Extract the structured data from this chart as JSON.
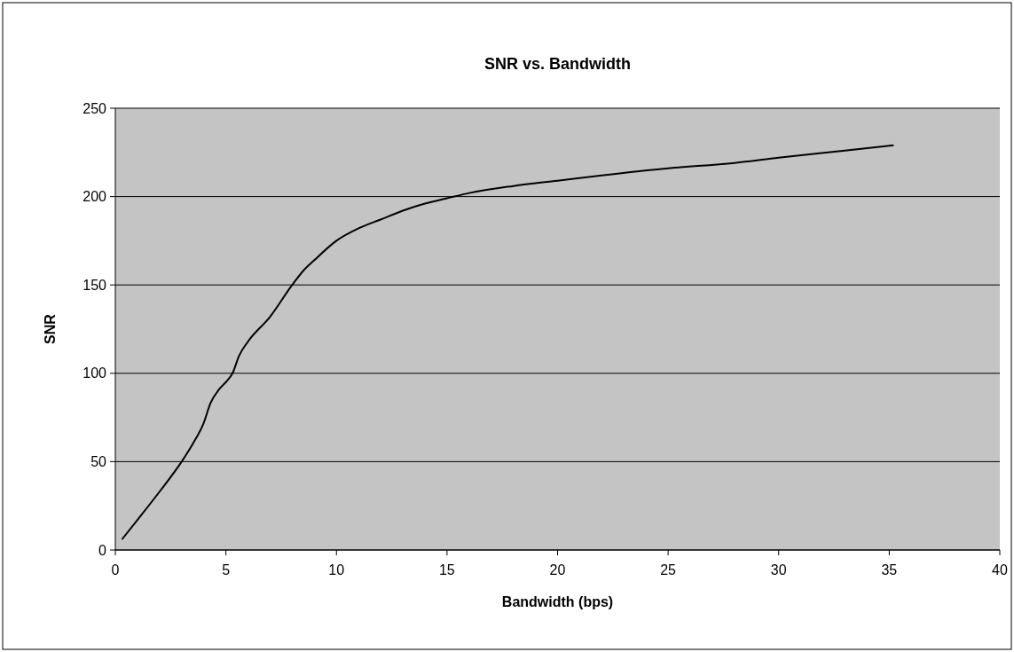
{
  "chart_data": {
    "type": "line",
    "title": "SNR vs. Bandwidth",
    "xlabel": "Bandwidth (bps)",
    "ylabel": "SNR",
    "x": [
      0.3,
      1,
      2,
      3,
      3.5,
      4,
      4.3,
      4.7,
      5,
      5.3,
      5.6,
      6,
      7,
      8,
      8.5,
      9,
      10,
      11,
      12,
      13,
      14,
      15,
      16,
      18,
      20,
      22,
      25,
      28,
      30,
      33,
      35.2
    ],
    "series": [
      {
        "color": "#000000",
        "values": [
          6,
          17,
          33,
          50,
          60,
          72,
          83,
          91,
          95,
          100,
          110,
          118,
          132,
          150,
          158,
          164,
          175,
          182,
          187,
          192,
          196,
          199,
          202,
          206,
          209,
          212,
          216,
          219,
          222,
          226,
          229
        ]
      }
    ],
    "xlim": [
      0,
      40
    ],
    "xticks": [
      0,
      5,
      10,
      15,
      20,
      25,
      30,
      35,
      40
    ],
    "ylim": [
      0,
      250
    ],
    "yticks": [
      0,
      50,
      100,
      150,
      200,
      250
    ],
    "grid": "y",
    "marker": "none",
    "line_style": "solid"
  }
}
